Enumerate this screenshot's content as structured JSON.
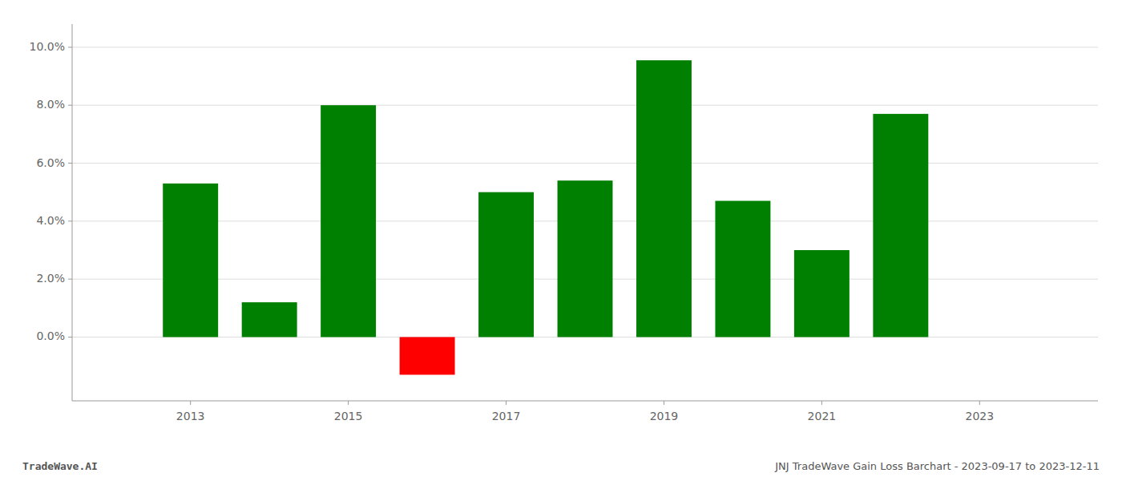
{
  "chart_data": {
    "type": "bar",
    "title": "JNJ TradeWave Gain Loss Barchart - 2023-09-17 to 2023-12-11",
    "annotations": [
      "TradeWave.AI"
    ],
    "x": [
      2013,
      2014,
      2015,
      2016,
      2017,
      2018,
      2019,
      2020,
      2021,
      2022
    ],
    "values": [
      0.053,
      0.012,
      0.08,
      -0.013,
      0.05,
      0.054,
      0.0955,
      0.047,
      0.03,
      0.077
    ],
    "colors": [
      "#008000",
      "#008000",
      "#008000",
      "#ff0000",
      "#008000",
      "#008000",
      "#008000",
      "#008000",
      "#008000",
      "#008000"
    ],
    "xlim": [
      2011.5,
      2024.5
    ],
    "xticks": [
      2013,
      2015,
      2017,
      2019,
      2021,
      2023
    ],
    "ylim": [
      -0.022,
      0.108
    ],
    "yticks": [
      {
        "value": 0.0,
        "label": "0.0%"
      },
      {
        "value": 0.02,
        "label": "2.0%"
      },
      {
        "value": 0.04,
        "label": "4.0%"
      },
      {
        "value": 0.06,
        "label": "6.0%"
      },
      {
        "value": 0.08,
        "label": "8.0%"
      },
      {
        "value": 0.1,
        "label": "10.0%"
      }
    ],
    "grid": true
  }
}
